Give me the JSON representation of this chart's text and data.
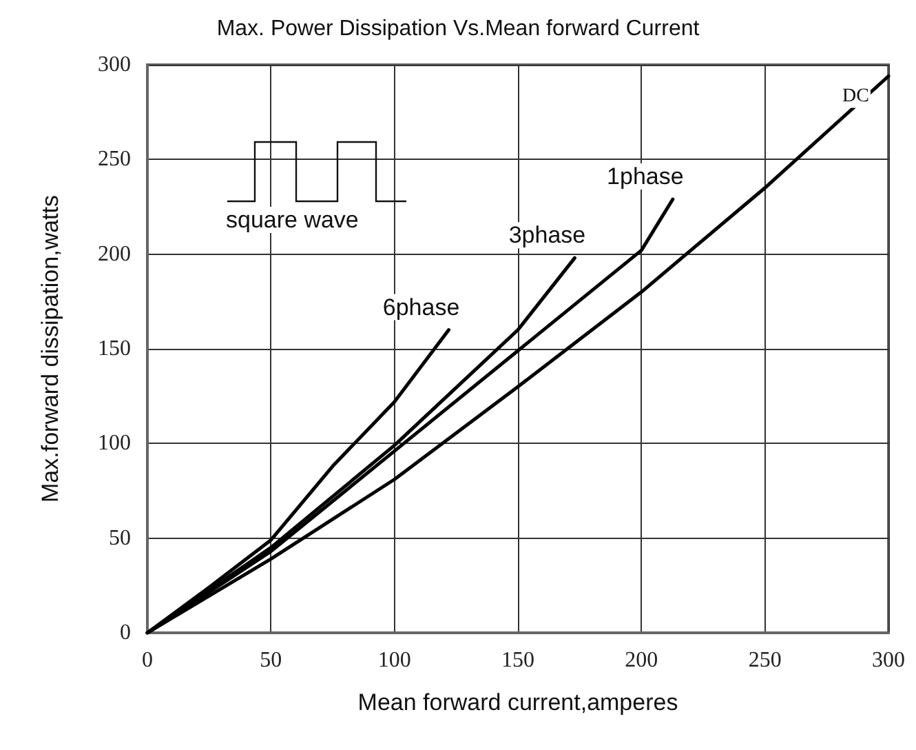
{
  "chart_data": {
    "type": "line",
    "title": "Max. Power Dissipation Vs.Mean forward Current",
    "xlabel": "Mean forward current,amperes",
    "ylabel": "Max.forward dissipation,watts",
    "xlim": [
      0,
      300
    ],
    "xticks": [
      0,
      50,
      100,
      150,
      200,
      250,
      300
    ],
    "ylim": [
      0,
      300
    ],
    "yticks": [
      0,
      50,
      100,
      150,
      200,
      250,
      300
    ],
    "grid": true,
    "marker": "none",
    "line_style": "solid",
    "annotations": [
      "square wave"
    ],
    "series": [
      {
        "name": "DC",
        "color": "#000000",
        "x": [
          0,
          50,
          100,
          150,
          200,
          250,
          300
        ],
        "values": [
          0,
          39,
          81,
          130,
          180,
          235,
          294
        ]
      },
      {
        "name": "1phase",
        "color": "#000000",
        "x": [
          0,
          50,
          100,
          150,
          200,
          212.7
        ],
        "values": [
          0,
          43,
          96,
          149,
          202,
          229
        ]
      },
      {
        "name": "3phase",
        "color": "#000000",
        "x": [
          0,
          50,
          100,
          150,
          173
        ],
        "values": [
          0,
          45,
          99,
          160,
          198
        ]
      },
      {
        "name": "6phase",
        "color": "#000000",
        "x": [
          0,
          25,
          50,
          75,
          100,
          122
        ],
        "values": [
          0,
          24,
          49,
          88,
          122,
          160
        ]
      }
    ]
  }
}
